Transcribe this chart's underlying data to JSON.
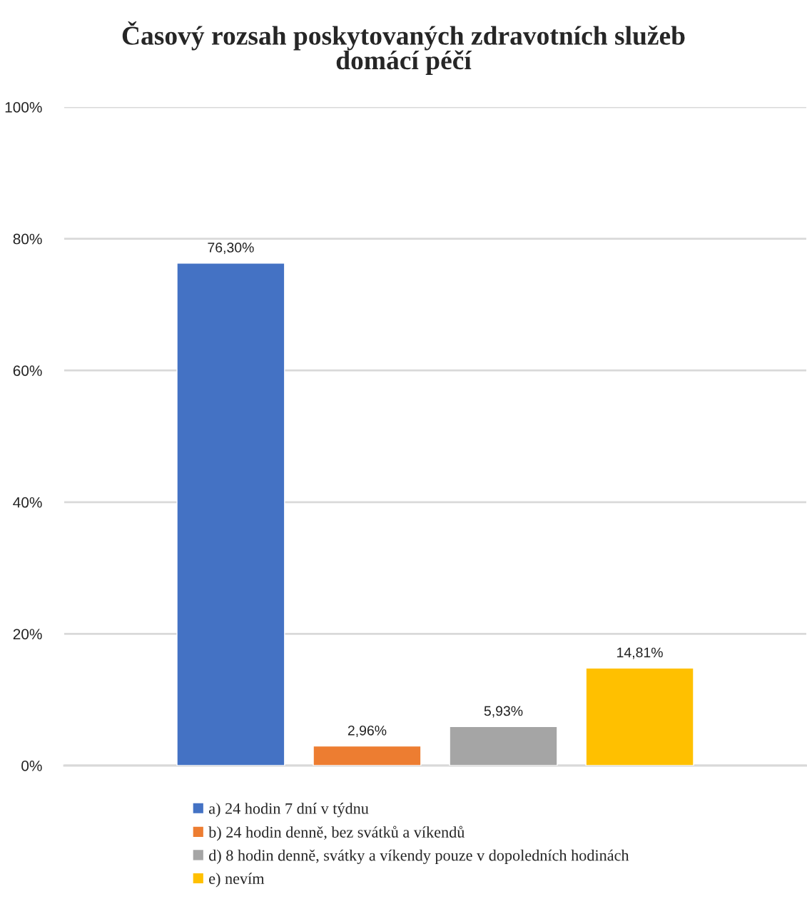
{
  "chart_data": {
    "type": "bar",
    "title": "Časový rozsah poskytovaných zdravotních služeb\ndomácí péčí",
    "categories": [
      null
    ],
    "series": [
      {
        "name": "a) 24 hodin 7 dní v týdnu",
        "color": "#4472c4",
        "values": [
          76.3
        ],
        "value_labels": [
          "76,30%"
        ]
      },
      {
        "name": "b) 24 hodin denně, bez svátků a víkendů",
        "color": "#ed7d31",
        "values": [
          2.96
        ],
        "value_labels": [
          "2,96%"
        ]
      },
      {
        "name": "d) 8 hodin denně, svátky a víkendy pouze v dopoledních hodinách",
        "color": "#a5a5a5",
        "values": [
          5.93
        ],
        "value_labels": [
          "5,93%"
        ]
      },
      {
        "name": "e) nevím",
        "color": "#ffc000",
        "values": [
          14.81
        ],
        "value_labels": [
          "14,81%"
        ]
      }
    ],
    "ylim": [
      0,
      100
    ],
    "yticks": [
      {
        "value": 0,
        "label": "0%"
      },
      {
        "value": 20,
        "label": "20%"
      },
      {
        "value": 40,
        "label": "40%"
      },
      {
        "value": 60,
        "label": "60%"
      },
      {
        "value": 80,
        "label": "80%"
      },
      {
        "value": 100,
        "label": "100%"
      }
    ],
    "grid": "y",
    "legend": "bottom"
  }
}
